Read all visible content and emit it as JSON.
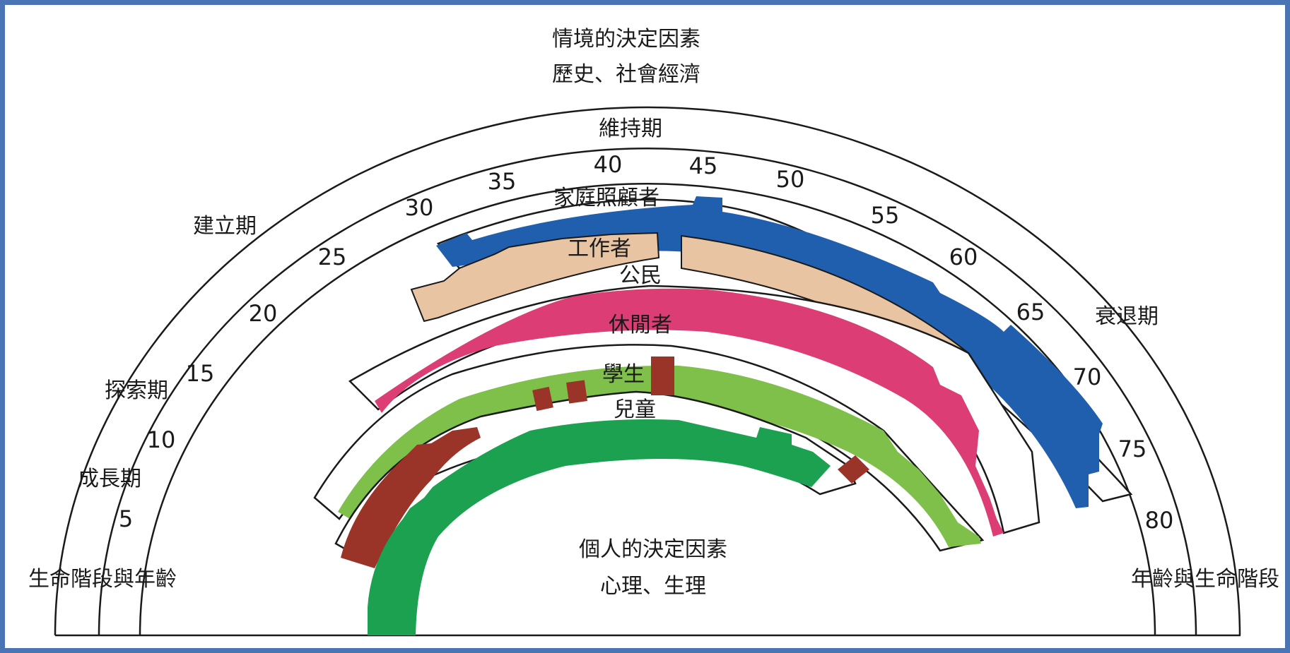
{
  "title_top": [
    "情境的決定因素",
    "歷史、社會經濟"
  ],
  "title_bottom": [
    "個人的決定因素",
    "心理、生理"
  ],
  "life_stages": {
    "growth": "成長期",
    "exploration": "探索期",
    "establishment": "建立期",
    "maintenance": "維持期",
    "decline": "衰退期"
  },
  "corner_labels": {
    "left": "生命階段與年齡",
    "right": "年齡與生命階段"
  },
  "age_ticks": [
    "5",
    "10",
    "15",
    "20",
    "25",
    "30",
    "35",
    "40",
    "45",
    "50",
    "55",
    "60",
    "65",
    "70",
    "75",
    "80"
  ],
  "roles": [
    {
      "name": "家庭照顧者",
      "color": "#1f5fae"
    },
    {
      "name": "工作者",
      "color": "#e8c4a2"
    },
    {
      "name": "公民",
      "color": "#dc3d74"
    },
    {
      "name": "休閒者",
      "color": "#7fc04b"
    },
    {
      "name": "學生",
      "color": "#9a3328"
    },
    {
      "name": "兒童",
      "color": "#1ba14f"
    }
  ]
}
